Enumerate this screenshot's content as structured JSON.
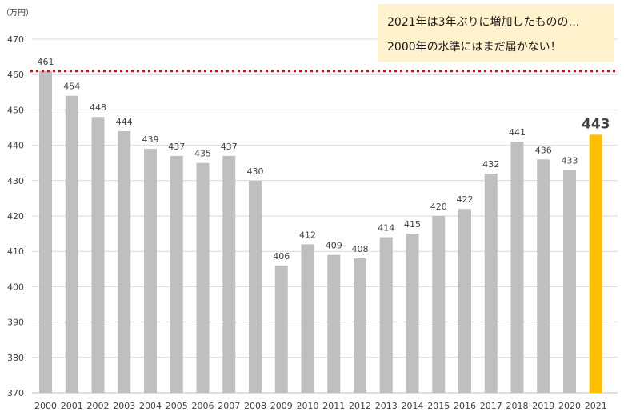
{
  "chart_data": {
    "type": "bar",
    "unit_label": "（万円）",
    "categories": [
      "2000",
      "2001",
      "2002",
      "2003",
      "2004",
      "2005",
      "2006",
      "2007",
      "2008",
      "2009",
      "2010",
      "2011",
      "2012",
      "2013",
      "2014",
      "2015",
      "2016",
      "2017",
      "2018",
      "2019",
      "2020",
      "2021"
    ],
    "values": [
      461,
      454,
      448,
      444,
      439,
      437,
      435,
      437,
      430,
      406,
      412,
      409,
      408,
      414,
      415,
      420,
      422,
      432,
      441,
      436,
      433,
      443
    ],
    "ylim": [
      370,
      470
    ],
    "yticks": [
      370,
      380,
      390,
      400,
      410,
      420,
      430,
      440,
      450,
      460,
      470
    ],
    "grid": true,
    "highlight_index": 21,
    "reference_line": {
      "value": 461,
      "style": "dotted"
    },
    "annotation": [
      "2021年は3年ぶりに増加したものの…",
      "2000年の水準にはまだ届かない！"
    ]
  },
  "colors": {
    "bar": "#bfbfbf",
    "highlight_bar": "#ffc000",
    "reference_line": "#e60012",
    "gridline": "#d9d9d9",
    "axis": "#bfbfbf",
    "annotation_bg": "#fff2cc"
  }
}
